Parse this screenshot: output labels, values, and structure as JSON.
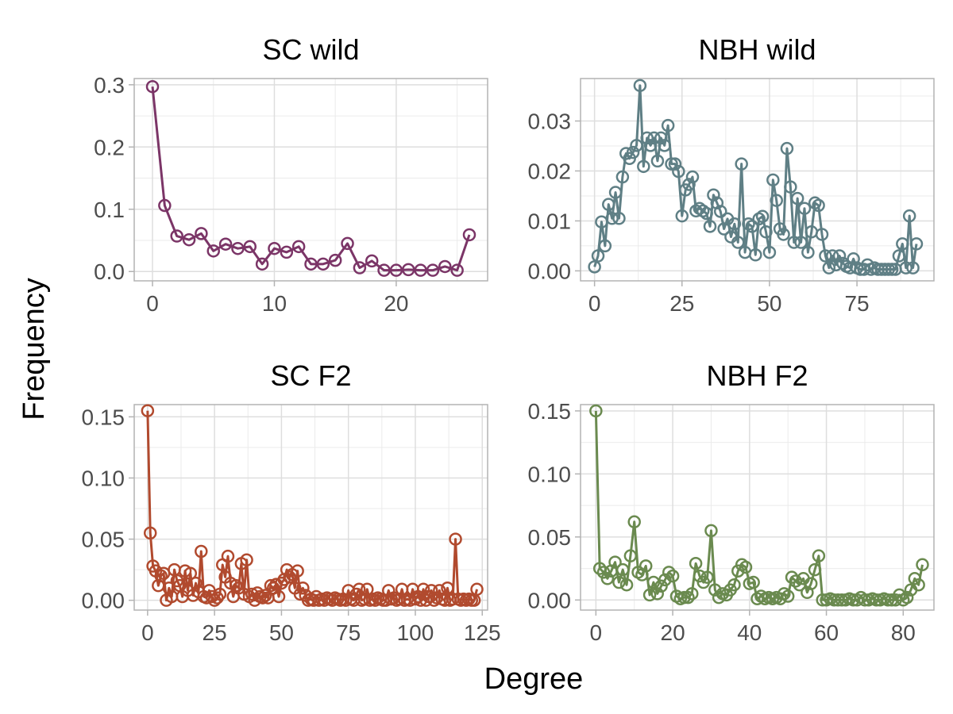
{
  "figure": {
    "xlabel": "Degree",
    "ylabel": "Frequency"
  },
  "chart_data": [
    {
      "type": "line",
      "title": "SC wild",
      "color": "#7b3567",
      "xlim": [
        -1.5,
        27.5
      ],
      "ylim": [
        -0.015,
        0.31
      ],
      "xticks": [
        0,
        10,
        20
      ],
      "yticks": [
        0.0,
        0.1,
        0.2,
        0.3
      ],
      "ytick_labels": [
        "0.0",
        "0.1",
        "0.2",
        "0.3"
      ],
      "series": [
        {
          "x": [
            0,
            1,
            2,
            3,
            4,
            5,
            6,
            7,
            8,
            9,
            10,
            11,
            12,
            13,
            14,
            15,
            16,
            17,
            18,
            19,
            20,
            21,
            22,
            23,
            24,
            25,
            26
          ],
          "y": [
            0.297,
            0.106,
            0.057,
            0.051,
            0.061,
            0.033,
            0.044,
            0.037,
            0.04,
            0.012,
            0.037,
            0.031,
            0.04,
            0.012,
            0.012,
            0.018,
            0.045,
            0.006,
            0.017,
            0.002,
            0.002,
            0.003,
            0.002,
            0.002,
            0.008,
            0.002,
            0.059
          ]
        }
      ]
    },
    {
      "type": "line",
      "title": "NBH wild",
      "color": "#5f7f85",
      "xlim": [
        -4,
        97
      ],
      "ylim": [
        -0.002,
        0.0385
      ],
      "xticks": [
        0,
        25,
        50,
        75
      ],
      "yticks": [
        0.0,
        0.01,
        0.02,
        0.03
      ],
      "ytick_labels": [
        "0.00",
        "0.01",
        "0.02",
        "0.03"
      ],
      "series": [
        {
          "x": [
            0,
            1,
            2,
            3,
            4,
            5,
            6,
            7,
            8,
            9,
            10,
            11,
            12,
            13,
            14,
            15,
            16,
            17,
            18,
            19,
            20,
            21,
            22,
            23,
            24,
            25,
            26,
            27,
            28,
            29,
            30,
            31,
            32,
            33,
            34,
            35,
            36,
            37,
            38,
            39,
            40,
            41,
            42,
            43,
            44,
            45,
            46,
            47,
            48,
            49,
            50,
            51,
            52,
            53,
            54,
            55,
            56,
            57,
            58,
            59,
            60,
            61,
            62,
            63,
            64,
            65,
            66,
            67,
            68,
            69,
            70,
            71,
            72,
            73,
            74,
            75,
            76,
            77,
            78,
            79,
            80,
            81,
            82,
            83,
            84,
            85,
            86,
            87,
            88,
            89,
            90,
            91,
            92
          ],
          "y": [
            0.0008,
            0.003,
            0.0098,
            0.005,
            0.0133,
            0.0105,
            0.0157,
            0.0105,
            0.0188,
            0.0235,
            0.0225,
            0.0237,
            0.0251,
            0.0371,
            0.0209,
            0.0266,
            0.0251,
            0.0266,
            0.022,
            0.0266,
            0.0251,
            0.0291,
            0.0214,
            0.0214,
            0.0199,
            0.011,
            0.0162,
            0.0173,
            0.0188,
            0.012,
            0.0125,
            0.012,
            0.0115,
            0.0089,
            0.0152,
            0.0136,
            0.0119,
            0.0084,
            0.0104,
            0.0068,
            0.0094,
            0.0057,
            0.0214,
            0.0037,
            0.0094,
            0.0089,
            0.0032,
            0.0104,
            0.0109,
            0.0078,
            0.0037,
            0.0182,
            0.0141,
            0.0084,
            0.0073,
            0.0245,
            0.0168,
            0.0057,
            0.0145,
            0.0057,
            0.0125,
            0.0037,
            0.0078,
            0.0136,
            0.0131,
            0.0073,
            0.003,
            0.0006,
            0.003,
            0.0012,
            0.003,
            0.0015,
            0.0009,
            0.0006,
            0.0024,
            0.0006,
            0.0003,
            0.0003,
            0.0012,
            0.0003,
            0.0006,
            0.0003,
            0.0003,
            0.0003,
            0.0003,
            0.0003,
            0.0003,
            0.003,
            0.0054,
            0.0006,
            0.011,
            0.0006,
            0.0054
          ]
        }
      ]
    },
    {
      "type": "line",
      "title": "SC F2",
      "color": "#b14a2e",
      "xlim": [
        -5,
        127
      ],
      "ylim": [
        -0.008,
        0.16
      ],
      "xticks": [
        0,
        25,
        50,
        75,
        100,
        125
      ],
      "yticks": [
        0.0,
        0.05,
        0.1,
        0.15
      ],
      "ytick_labels": [
        "0.00",
        "0.05",
        "0.10",
        "0.15"
      ],
      "series": [
        {
          "x": [
            0,
            1,
            2,
            3,
            4,
            5,
            6,
            7,
            8,
            9,
            10,
            11,
            12,
            13,
            14,
            15,
            16,
            17,
            18,
            19,
            20,
            21,
            22,
            23,
            24,
            25,
            26,
            27,
            28,
            29,
            30,
            31,
            32,
            33,
            34,
            35,
            36,
            37,
            38,
            39,
            40,
            41,
            42,
            43,
            44,
            45,
            46,
            47,
            48,
            49,
            50,
            51,
            52,
            53,
            54,
            55,
            56,
            57,
            58,
            59,
            60,
            61,
            62,
            63,
            64,
            65,
            66,
            67,
            68,
            69,
            70,
            71,
            72,
            73,
            74,
            75,
            76,
            77,
            78,
            79,
            80,
            81,
            82,
            83,
            84,
            85,
            86,
            87,
            88,
            89,
            90,
            91,
            92,
            93,
            94,
            95,
            96,
            97,
            98,
            99,
            100,
            101,
            102,
            103,
            104,
            105,
            106,
            107,
            108,
            109,
            110,
            111,
            112,
            113,
            114,
            115,
            116,
            117,
            118,
            119,
            120,
            121,
            122,
            123
          ],
          "y": [
            0.155,
            0.055,
            0.028,
            0.024,
            0.012,
            0.02,
            0.022,
            0,
            0.01,
            0.003,
            0.025,
            0.016,
            0.012,
            0.003,
            0.024,
            0.008,
            0.022,
            0.004,
            0.014,
            0.007,
            0.04,
            0.003,
            0.002,
            0.008,
            0.003,
            0,
            0.002,
            0.005,
            0.029,
            0.019,
            0.036,
            0.014,
            0.003,
            0.012,
            0.01,
            0.03,
            0.005,
            0.033,
            0.003,
            0.005,
            0,
            0.006,
            0.003,
            0.002,
            0.004,
            0.002,
            0.012,
            0.01,
            0.013,
            0.003,
            0.014,
            0.017,
            0.025,
            0.019,
            0.021,
            0.01,
            0.024,
            0.005,
            0.01,
            0.004,
            0,
            0.001,
            0,
            0.003,
            0,
            0.001,
            0,
            0.002,
            0.001,
            0,
            0.002,
            0.001,
            0,
            0.001,
            0,
            0.008,
            0.001,
            0,
            0.005,
            0.009,
            0,
            0.001,
            0.009,
            0,
            0.001,
            0,
            0.002,
            0.001,
            0,
            0,
            0.008,
            0.001,
            0.002,
            0,
            0.001,
            0.009,
            0,
            0.001,
            0,
            0.009,
            0.001,
            0.003,
            0,
            0.009,
            0,
            0.003,
            0.008,
            0,
            0.002,
            0.008,
            0.001,
            0,
            0.01,
            0,
            0.001,
            0.05,
            0.001,
            0,
            0.001,
            0,
            0.001,
            0,
            0,
            0.009
          ]
        }
      ]
    },
    {
      "type": "line",
      "title": "NBH F2",
      "color": "#6a8a4f",
      "xlim": [
        -4,
        88
      ],
      "ylim": [
        -0.008,
        0.155
      ],
      "xticks": [
        0,
        20,
        40,
        60,
        80
      ],
      "yticks": [
        0.0,
        0.05,
        0.1,
        0.15
      ],
      "ytick_labels": [
        "0.00",
        "0.05",
        "0.10",
        "0.15"
      ],
      "series": [
        {
          "x": [
            0,
            1,
            2,
            3,
            4,
            5,
            6,
            7,
            8,
            9,
            10,
            11,
            12,
            13,
            14,
            15,
            16,
            17,
            18,
            19,
            20,
            21,
            22,
            23,
            24,
            25,
            26,
            27,
            28,
            29,
            30,
            31,
            32,
            33,
            34,
            35,
            36,
            37,
            38,
            39,
            40,
            41,
            42,
            43,
            44,
            45,
            46,
            47,
            48,
            49,
            50,
            51,
            52,
            53,
            54,
            55,
            56,
            57,
            58,
            59,
            60,
            61,
            62,
            63,
            64,
            65,
            66,
            67,
            68,
            69,
            70,
            71,
            72,
            73,
            74,
            75,
            76,
            77,
            78,
            79,
            80,
            81,
            82,
            83,
            84,
            85
          ],
          "y": [
            0.15,
            0.025,
            0.022,
            0.017,
            0.023,
            0.03,
            0.014,
            0.024,
            0.012,
            0.035,
            0.062,
            0.022,
            0.02,
            0.027,
            0.004,
            0.014,
            0.005,
            0.011,
            0.016,
            0.022,
            0.019,
            0.003,
            0.001,
            0.002,
            0.002,
            0.005,
            0.029,
            0.019,
            0.014,
            0.018,
            0.055,
            0.008,
            0.002,
            0.005,
            0.004,
            0.008,
            0.012,
            0.023,
            0.028,
            0.026,
            0.013,
            0.014,
            0.001,
            0.003,
            0.001,
            0.002,
            0.001,
            0.002,
            0.001,
            0.005,
            0.003,
            0.018,
            0.015,
            0.012,
            0.017,
            0.006,
            0.013,
            0.024,
            0.035,
            0,
            0,
            0.001,
            0,
            0,
            0,
            0,
            0.001,
            0,
            0,
            0.002,
            0,
            0,
            0.001,
            0,
            0,
            0.001,
            0,
            0,
            0,
            0.004,
            0,
            0.002,
            0.008,
            0.017,
            0.012,
            0.028
          ]
        }
      ]
    }
  ]
}
